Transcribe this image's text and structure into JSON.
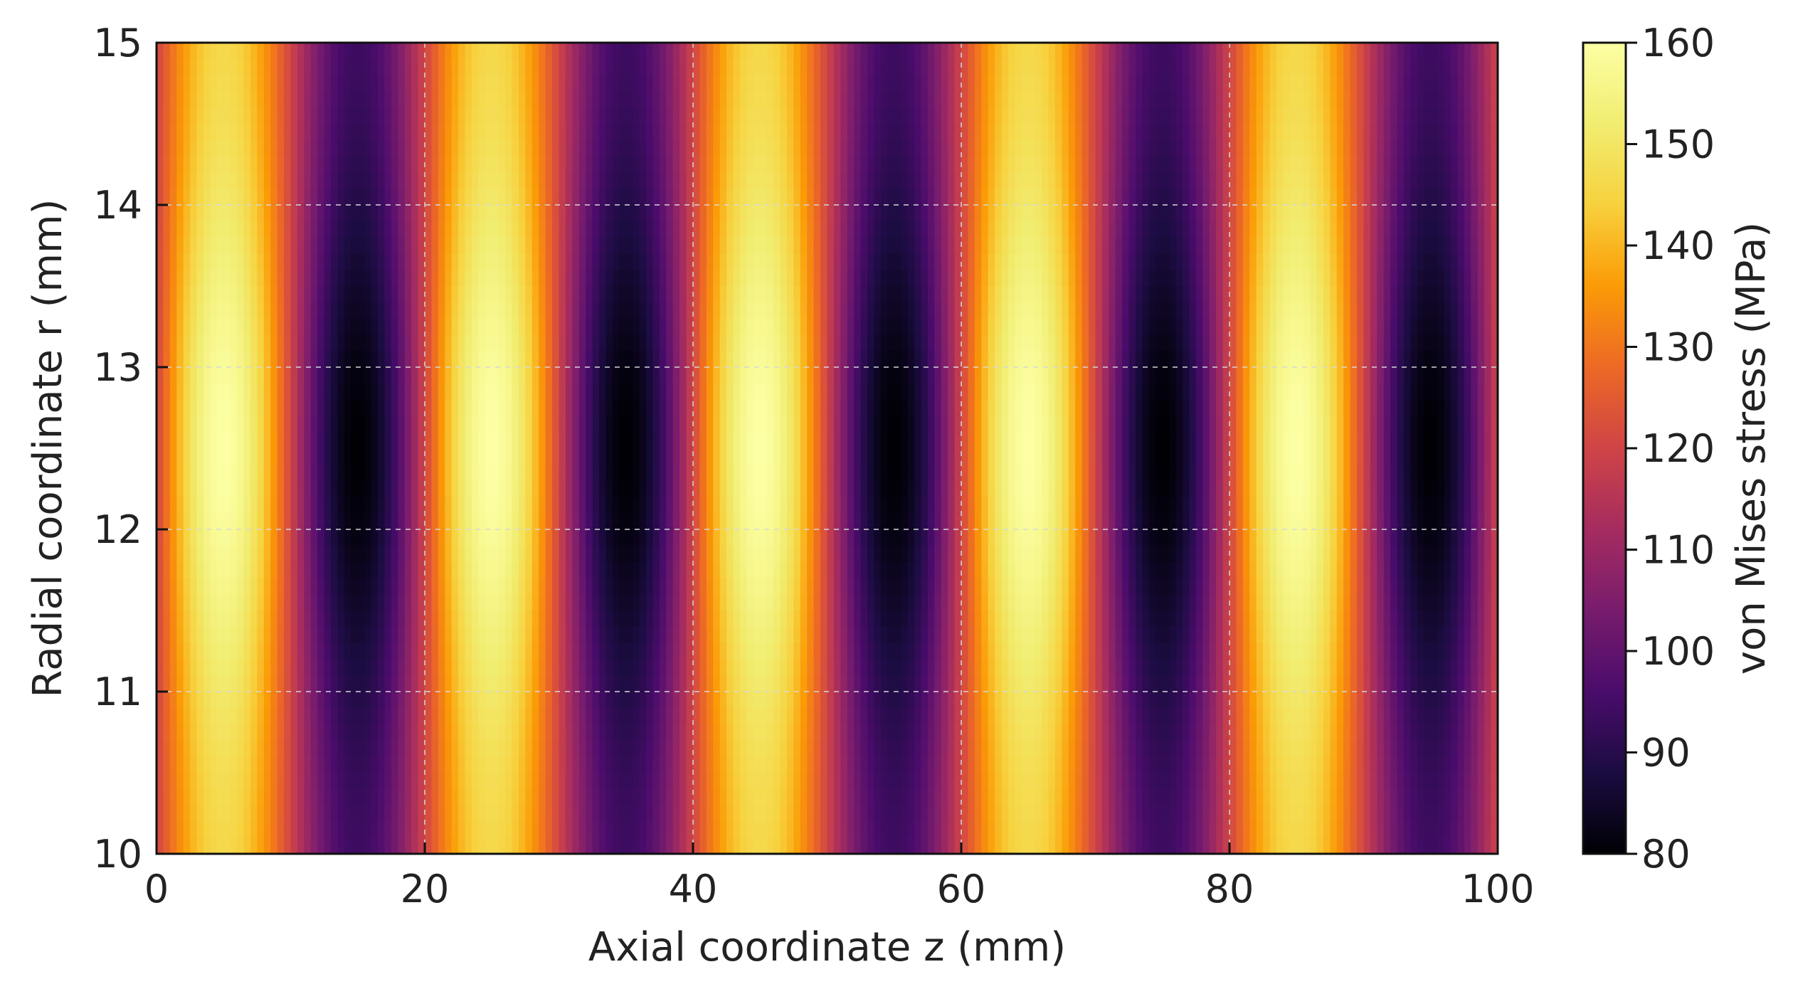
{
  "chart_data": {
    "type": "heatmap",
    "title": "",
    "xlabel": "Axial coordinate z (mm)",
    "ylabel": "Radial coordinate r (mm)",
    "colorbar_label": "von Mises stress (MPa)",
    "xlim": [
      0,
      100
    ],
    "ylim": [
      10,
      15
    ],
    "clim": [
      80,
      160
    ],
    "x_ticks": [
      0,
      20,
      40,
      60,
      80,
      100
    ],
    "y_ticks": [
      10,
      11,
      12,
      13,
      14,
      15
    ],
    "colorbar_ticks": [
      80,
      90,
      100,
      110,
      120,
      130,
      140,
      150,
      160
    ],
    "grid": true,
    "colormap": "inferno",
    "colormap_stops": [
      [
        0.0,
        "#000004"
      ],
      [
        0.1,
        "#1b0c41"
      ],
      [
        0.2,
        "#4a0c6b"
      ],
      [
        0.3,
        "#781c6d"
      ],
      [
        0.4,
        "#a52c60"
      ],
      [
        0.5,
        "#cf4446"
      ],
      [
        0.6,
        "#ed6925"
      ],
      [
        0.7,
        "#fb9b06"
      ],
      [
        0.8,
        "#f7d13d"
      ],
      [
        0.9,
        "#f1ed71"
      ],
      [
        1.0,
        "#fcffa4"
      ]
    ],
    "field": {
      "description_values": "stress varies sinusoidally along z with period 20 mm; maxima near z=5,25,45,65,85 and minima near z=15,35,55,75,95; strongest near r=12.5",
      "z_peaks": [
        5,
        25,
        45,
        65,
        85
      ],
      "z_troughs": [
        15,
        35,
        55,
        75,
        95
      ],
      "r_center": 12.5,
      "peak_value": 160,
      "trough_value": 80,
      "edge_peak_value": 145,
      "edge_trough_value": 95
    }
  }
}
